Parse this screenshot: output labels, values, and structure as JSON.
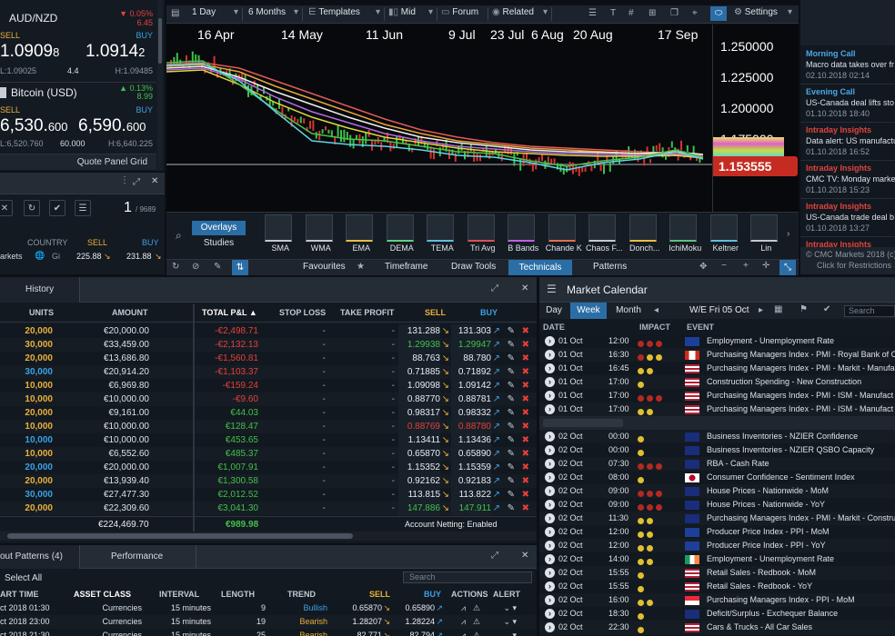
{
  "quote_panel": {
    "instruments": [
      {
        "name": "AUD/NZD",
        "change_pct": "▼ 0.05%",
        "change_abs": "6.45",
        "sell_label": "SELL",
        "buy_label": "BUY",
        "sell_main": "1.0909",
        "sell_small": "8",
        "buy_main": "1.0914",
        "buy_small": "2",
        "low": "L:1.09025",
        "spread": "4.4",
        "high": "H:1.09485"
      },
      {
        "name": "Bitcoin (USD)",
        "change_pct": "▲ 0.13%",
        "change_abs": "8.99",
        "sell_label": "SELL",
        "buy_label": "BUY",
        "sell_main": "6,530.",
        "sell_small": "600",
        "buy_main": "6,590.",
        "buy_small": "600",
        "low": "L:6,520.760",
        "spread": "60.000",
        "high": "H:6,640.225"
      }
    ],
    "footer_label": "Quote Panel Grid",
    "page_indicator": "1",
    "page_total": "/ 9689",
    "watch_headers": [
      "COUNTRY",
      "SELL",
      "BUY"
    ],
    "watch_row": {
      "name": "arkets",
      "country": "Gi",
      "sell": "225.88",
      "buy": "231.88"
    }
  },
  "chart": {
    "toolbar": {
      "interval": "1 Day",
      "range": "6 Months",
      "templates": "Templates",
      "price_type": "Mid",
      "forum": "Forum",
      "related": "Related",
      "settings": "Settings"
    },
    "dates": [
      "16 Apr",
      "14 May",
      "11 Jun",
      "9 Jul",
      "23 Jul",
      "6 Aug",
      "20 Aug",
      "17 Sep"
    ],
    "prices": [
      "1.250000",
      "1.225000",
      "1.200000",
      "1.175000"
    ],
    "current_price": "1.153555",
    "tech_tabs": [
      "Overlays",
      "Studies"
    ],
    "indicators": [
      "SMA",
      "WMA",
      "EMA",
      "DEMA",
      "TEMA",
      "Tri Avg",
      "B Bands",
      "Chande K",
      "Chaos F...",
      "Donch...",
      "IchiMoku",
      "Keltner",
      "Lin"
    ],
    "bottom_tabs": [
      "Favourites",
      "Timeframe",
      "Draw Tools",
      "Technicals",
      "Patterns"
    ]
  },
  "news": {
    "items": [
      {
        "category": "Morning Call",
        "headline": "Macro data takes over fr",
        "time": "02.10.2018 02:14"
      },
      {
        "category": "Evening Call",
        "headline": "US-Canada deal lifts sto",
        "time": "01.10.2018 18:40"
      },
      {
        "category": "Intraday Insights",
        "headline": "Data alert: US manufactu",
        "time": "01.10.2018 16:52"
      },
      {
        "category": "Intraday Insights",
        "headline": "CMC TV: Monday marke",
        "time": "01.10.2018 15:23"
      },
      {
        "category": "Intraday Insights",
        "headline": "US-Canada trade deal b",
        "time": "01.10.2018 13:27"
      },
      {
        "category": "Intraday Insights",
        "headline": "",
        "time": ""
      }
    ],
    "footer_line1": "© CMC Markets 2018 (c)",
    "footer_line2": "Click for Restrictions"
  },
  "positions": {
    "tab": "History",
    "headers": [
      "UNITS",
      "AMOUNT",
      "TOTAL P&L",
      "STOP LOSS",
      "TAKE PROFIT",
      "SELL",
      "BUY"
    ],
    "rows": [
      {
        "units": "20,000",
        "uc": "ylw",
        "amount": "€20,000.00",
        "pl": "-€2,498.71",
        "plc": "red",
        "sell": "131.288",
        "buy": "131.303",
        "pc": "w"
      },
      {
        "units": "30,000",
        "uc": "ylw",
        "amount": "€33,459.00",
        "pl": "-€2,132.13",
        "plc": "red",
        "sell": "1.29938",
        "buy": "1.29947",
        "pc": "g"
      },
      {
        "units": "20,000",
        "uc": "ylw",
        "amount": "€13,686.80",
        "pl": "-€1,560.81",
        "plc": "red",
        "sell": "88.763",
        "buy": "88.780",
        "pc": "w"
      },
      {
        "units": "30,000",
        "uc": "blu",
        "amount": "€20,914.20",
        "pl": "-€1,103.37",
        "plc": "red",
        "sell": "0.71885",
        "buy": "0.71892",
        "pc": "w"
      },
      {
        "units": "10,000",
        "uc": "ylw",
        "amount": "€6,969.80",
        "pl": "-€159.24",
        "plc": "red",
        "sell": "1.09098",
        "buy": "1.09142",
        "pc": "w"
      },
      {
        "units": "10,000",
        "uc": "ylw",
        "amount": "€10,000.00",
        "pl": "-€9.60",
        "plc": "red",
        "sell": "0.88770",
        "buy": "0.88781",
        "pc": "w"
      },
      {
        "units": "20,000",
        "uc": "ylw",
        "amount": "€9,161.00",
        "pl": "€44.03",
        "plc": "grn",
        "sell": "0.98317",
        "buy": "0.98332",
        "pc": "w"
      },
      {
        "units": "10,000",
        "uc": "ylw",
        "amount": "€10,000.00",
        "pl": "€128.47",
        "plc": "grn",
        "sell": "0.88769",
        "buy": "0.88780",
        "pc": "r"
      },
      {
        "units": "10,000",
        "uc": "blu",
        "amount": "€10,000.00",
        "pl": "€453.65",
        "plc": "grn",
        "sell": "1.13411",
        "buy": "1.13436",
        "pc": "w"
      },
      {
        "units": "10,000",
        "uc": "ylw",
        "amount": "€6,552.60",
        "pl": "€485.37",
        "plc": "grn",
        "sell": "0.65870",
        "buy": "0.65890",
        "pc": "w"
      },
      {
        "units": "20,000",
        "uc": "blu",
        "amount": "€20,000.00",
        "pl": "€1,007.91",
        "plc": "grn",
        "sell": "1.15352",
        "buy": "1.15359",
        "pc": "w"
      },
      {
        "units": "20,000",
        "uc": "ylw",
        "amount": "€13,939.40",
        "pl": "€1,300.58",
        "plc": "grn",
        "sell": "0.92162",
        "buy": "0.92183",
        "pc": "w"
      },
      {
        "units": "30,000",
        "uc": "blu",
        "amount": "€27,477.30",
        "pl": "€2,012.52",
        "plc": "grn",
        "sell": "113.815",
        "buy": "113.822",
        "pc": "w"
      },
      {
        "units": "20,000",
        "uc": "ylw",
        "amount": "€22,309.60",
        "pl": "€3,041.30",
        "plc": "grn",
        "sell": "147.886",
        "buy": "147.911",
        "pc": "g"
      }
    ],
    "total_amount": "€224,469.70",
    "total_pl": "€989.98",
    "netting": "Account Netting: Enabled"
  },
  "patterns": {
    "tabs": [
      "out Patterns (4)",
      "Performance"
    ],
    "select_all": "Select All",
    "search_placeholder": "Search",
    "headers": [
      "ART TIME",
      "ASSET CLASS",
      "INTERVAL",
      "LENGTH",
      "TREND",
      "SELL",
      "BUY",
      "ACTIONS",
      "ALERT"
    ],
    "rows": [
      {
        "time": "ct 2018 01:30",
        "asset": "Currencies",
        "interval": "15 minutes",
        "length": "9",
        "trend": "Bullish",
        "tc": "blu",
        "sell": "0.65870",
        "buy": "0.65890"
      },
      {
        "time": "ct 2018 23:00",
        "asset": "Currencies",
        "interval": "15 minutes",
        "length": "19",
        "trend": "Bearish",
        "tc": "ylw",
        "sell": "1.28207",
        "buy": "1.28224"
      },
      {
        "time": "ct 2018 21:30",
        "asset": "Currencies",
        "interval": "15 minutes",
        "length": "25",
        "trend": "Bearish",
        "tc": "ylw",
        "sell": "82.771",
        "buy": "82.794"
      }
    ]
  },
  "calendar": {
    "title": "Market Calendar",
    "tabs": [
      "Day",
      "Week",
      "Month"
    ],
    "week_label": "W/E Fri 05 Oct",
    "search_placeholder": "Search",
    "headers": [
      "DATE",
      "IMPACT",
      "EVENT"
    ],
    "rows": [
      {
        "date": "01 Oct",
        "time": "12:00",
        "impact": "rrr",
        "flag": "eu",
        "event": "Employment - Unemployment Rate"
      },
      {
        "date": "01 Oct",
        "time": "16:30",
        "impact": "ryy",
        "flag": "ca",
        "event": "Purchasing Managers Index - PMI - Royal Bank of C"
      },
      {
        "date": "01 Oct",
        "time": "16:45",
        "impact": "yy",
        "flag": "us",
        "event": "Purchasing Managers Index - PMI - Markit - Manufa"
      },
      {
        "date": "01 Oct",
        "time": "17:00",
        "impact": "y",
        "flag": "us",
        "event": "Construction Spending - New Construction"
      },
      {
        "date": "01 Oct",
        "time": "17:00",
        "impact": "rrr",
        "flag": "us",
        "event": "Purchasing Managers Index - PMI - ISM - Manufact"
      },
      {
        "date": "01 Oct",
        "time": "17:00",
        "impact": "yy",
        "flag": "us",
        "event": "Purchasing Managers Index - PMI - ISM - Manufact"
      },
      {
        "date": "",
        "time": "",
        "impact": "",
        "flag": "",
        "event": ""
      },
      {
        "date": "02 Oct",
        "time": "00:00",
        "impact": "y",
        "flag": "nz",
        "event": "Business Inventories - NZIER Confidence"
      },
      {
        "date": "02 Oct",
        "time": "00:00",
        "impact": "y",
        "flag": "nz",
        "event": "Business Inventories - NZIER QSBO Capacity"
      },
      {
        "date": "02 Oct",
        "time": "07:30",
        "impact": "rrr",
        "flag": "au",
        "event": "RBA - Cash Rate"
      },
      {
        "date": "02 Oct",
        "time": "08:00",
        "impact": "y",
        "flag": "jp",
        "event": "Consumer Confidence - Sentiment Index"
      },
      {
        "date": "02 Oct",
        "time": "09:00",
        "impact": "rrr",
        "flag": "au",
        "event": "House Prices - Nationwide - MoM"
      },
      {
        "date": "02 Oct",
        "time": "09:00",
        "impact": "rrr",
        "flag": "au",
        "event": "House Prices - Nationwide - YoY"
      },
      {
        "date": "02 Oct",
        "time": "11:30",
        "impact": "yy",
        "flag": "uk",
        "event": "Purchasing Managers Index - PMI - Markit - Constru"
      },
      {
        "date": "02 Oct",
        "time": "12:00",
        "impact": "yy",
        "flag": "eu",
        "event": "Producer Price Index - PPI - MoM"
      },
      {
        "date": "02 Oct",
        "time": "12:00",
        "impact": "yy",
        "flag": "eu",
        "event": "Producer Price Index - PPI - YoY"
      },
      {
        "date": "02 Oct",
        "time": "14:00",
        "impact": "yy",
        "flag": "ie",
        "event": "Employment - Unemployment Rate"
      },
      {
        "date": "02 Oct",
        "time": "15:55",
        "impact": "y",
        "flag": "us",
        "event": "Retail Sales - Redbook - MoM"
      },
      {
        "date": "02 Oct",
        "time": "15:55",
        "impact": "y",
        "flag": "us",
        "event": "Retail Sales - Redbook - YoY"
      },
      {
        "date": "02 Oct",
        "time": "16:00",
        "impact": "yy",
        "flag": "sg",
        "event": "Purchasing Managers Index - PPI - MoM"
      },
      {
        "date": "02 Oct",
        "time": "18:30",
        "impact": "y",
        "flag": "uk",
        "event": "Deficit/Surplus - Exchequer Balance"
      },
      {
        "date": "02 Oct",
        "time": "22:30",
        "impact": "y",
        "flag": "us",
        "event": "Cars & Trucks - All Car Sales"
      }
    ]
  },
  "colors": {
    "sell": "#e8b13a",
    "buy": "#3aa2e6",
    "positive": "#42c04b",
    "negative": "#e5413a",
    "accent": "#2b6ea6",
    "price_tag": "#c62b22"
  }
}
